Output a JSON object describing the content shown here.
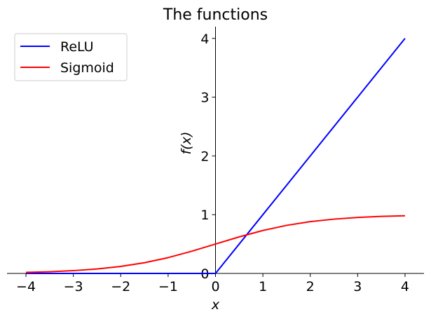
{
  "chart_data": {
    "type": "line",
    "title": "The functions",
    "xlabel": "x",
    "ylabel": "f(x)",
    "xlim": [
      -4.4,
      4.4
    ],
    "ylim": [
      0,
      4.2
    ],
    "x_ticks": [
      -4,
      -3,
      -2,
      -1,
      0,
      1,
      2,
      3,
      4
    ],
    "y_ticks": [
      0,
      1,
      2,
      3,
      4
    ],
    "x_tick_labels": [
      "−4",
      "−3",
      "−2",
      "−1",
      "0",
      "1",
      "2",
      "3",
      "4"
    ],
    "y_tick_labels": [
      "0",
      "1",
      "2",
      "3",
      "4"
    ],
    "grid": false,
    "legend": {
      "placement": "top-left",
      "entries": [
        "ReLU",
        "Sigmoid"
      ]
    },
    "series": [
      {
        "name": "ReLU",
        "color": "#0000ff",
        "x": [
          -4,
          -3,
          -2,
          -1,
          0,
          1,
          2,
          3,
          4
        ],
        "y": [
          0,
          0,
          0,
          0,
          0,
          1,
          2,
          3,
          4
        ]
      },
      {
        "name": "Sigmoid",
        "color": "#ff0000",
        "x": [
          -4,
          -3.5,
          -3,
          -2.5,
          -2,
          -1.5,
          -1,
          -0.5,
          0,
          0.5,
          1,
          1.5,
          2,
          2.5,
          3,
          3.5,
          4
        ],
        "y": [
          0.018,
          0.029,
          0.047,
          0.076,
          0.119,
          0.182,
          0.269,
          0.378,
          0.5,
          0.622,
          0.731,
          0.818,
          0.881,
          0.924,
          0.953,
          0.971,
          0.982
        ]
      }
    ]
  }
}
